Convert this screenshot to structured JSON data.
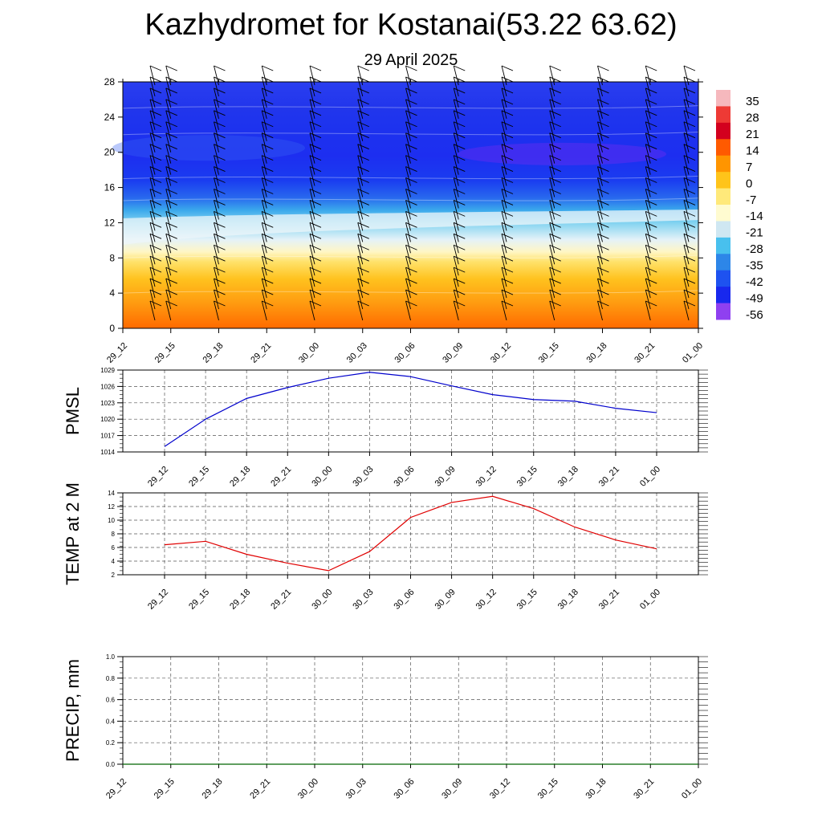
{
  "header": {
    "title": "Kazhydromet for Kostanai(53.22 63.62)",
    "subtitle": "29 April 2025"
  },
  "chart_data": [
    {
      "type": "heatmap",
      "title": "Kazhydromet for Kostanai(53.22 63.62)",
      "subtitle": "29 April 2025",
      "x_tick_labels": [
        "29_12",
        "29_15",
        "29_18",
        "29_21",
        "30_00",
        "30_03",
        "30_06",
        "30_09",
        "30_12",
        "30_15",
        "30_18",
        "30_21",
        "01_00"
      ],
      "y_ticks": [
        0,
        4,
        8,
        12,
        16,
        20,
        24,
        28
      ],
      "ylim": [
        0,
        28
      ],
      "color_levels": [
        35,
        28,
        21,
        14,
        7,
        0,
        -7,
        -14,
        -21,
        -28,
        -35,
        -42,
        -49,
        -56
      ],
      "colorbar_colors": [
        "#f6b8bd",
        "#ee3a35",
        "#d3001e",
        "#ff5a00",
        "#ff9500",
        "#ffc41a",
        "#ffe97a",
        "#fffbd0",
        "#cfe7f2",
        "#48c0ee",
        "#2d86e8",
        "#1e52f0",
        "#1828ee",
        "#8f40f0"
      ],
      "wind_barbs": true,
      "legend": "right"
    },
    {
      "type": "line",
      "ylabel": "PMSL",
      "x_tick_labels": [
        "29_12",
        "29_15",
        "29_18",
        "29_21",
        "30_00",
        "30_03",
        "30_06",
        "30_09",
        "30_12",
        "30_15",
        "30_18",
        "30_21",
        "01_00"
      ],
      "values": [
        1015,
        1020,
        1023.8,
        1025.8,
        1027.5,
        1028.6,
        1027.8,
        1026.1,
        1024.5,
        1023.6,
        1023.3,
        1022,
        1021.2
      ],
      "y_ticks": [
        1014,
        1017,
        1020,
        1023,
        1026,
        1029
      ],
      "ylim": [
        1014,
        1029
      ],
      "color": "#0000cc",
      "grid": true
    },
    {
      "type": "line",
      "ylabel": "TEMP at 2 M",
      "x_tick_labels": [
        "29_12",
        "29_15",
        "29_18",
        "29_21",
        "30_00",
        "30_03",
        "30_06",
        "30_09",
        "30_12",
        "30_15",
        "30_18",
        "30_21",
        "01_00"
      ],
      "values": [
        6.4,
        6.9,
        5,
        3.7,
        2.6,
        5.4,
        10.4,
        12.6,
        13.5,
        11.7,
        9,
        7.1,
        5.8
      ],
      "y_ticks": [
        2,
        4,
        6,
        8,
        10,
        12,
        14
      ],
      "ylim": [
        2,
        14
      ],
      "color": "#e00000",
      "grid": true
    },
    {
      "type": "line",
      "ylabel": "PRECIP, mm",
      "x_tick_labels": [
        "29_12",
        "29_15",
        "29_18",
        "29_21",
        "30_00",
        "30_03",
        "30_06",
        "30_09",
        "30_12",
        "30_15",
        "30_18",
        "30_21",
        "01_00"
      ],
      "values": [
        0,
        0,
        0,
        0,
        0,
        0,
        0,
        0,
        0,
        0,
        0,
        0,
        0
      ],
      "y_ticks": [
        "0.0",
        "0.2",
        "0.4",
        "0.6",
        "0.8",
        "1.0"
      ],
      "ylim": [
        0,
        1
      ],
      "color": "#006400",
      "grid": true
    }
  ]
}
